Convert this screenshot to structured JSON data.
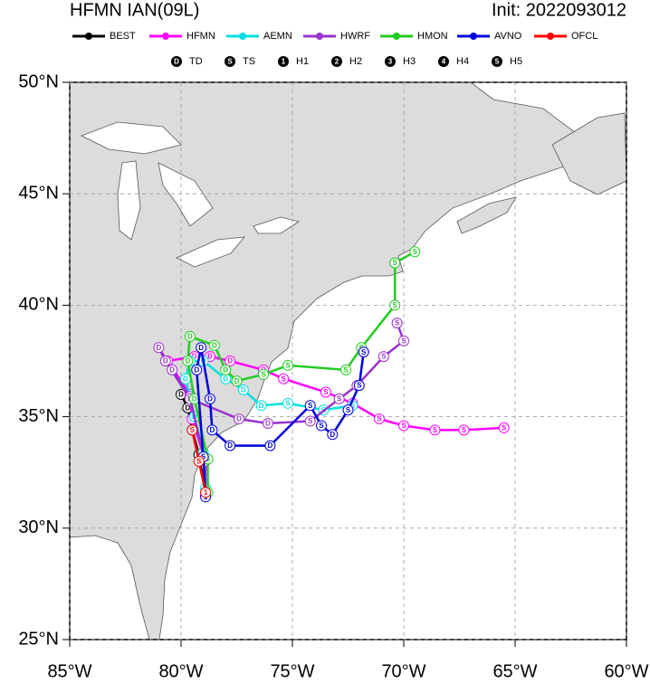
{
  "chart_data": {
    "type": "line",
    "title": "HFMN IAN(09L)",
    "subtitle": "Init: 2022093012",
    "xlim": [
      -85,
      -60
    ],
    "ylim": [
      25,
      50
    ],
    "xticks": [
      {
        "value": -85,
        "label": "85°W"
      },
      {
        "value": -80,
        "label": "80°W"
      },
      {
        "value": -75,
        "label": "75°W"
      },
      {
        "value": -70,
        "label": "70°W"
      },
      {
        "value": -65,
        "label": "65°W"
      },
      {
        "value": -60,
        "label": "60°W"
      }
    ],
    "yticks": [
      {
        "value": 25,
        "label": "25°N"
      },
      {
        "value": 30,
        "label": "30°N"
      },
      {
        "value": 35,
        "label": "35°N"
      },
      {
        "value": 40,
        "label": "40°N"
      },
      {
        "value": 45,
        "label": "45°N"
      },
      {
        "value": 50,
        "label": "50°N"
      }
    ],
    "grid": true,
    "intensity_legend": [
      {
        "symbol": "D",
        "label": "TD"
      },
      {
        "symbol": "S",
        "label": "TS"
      },
      {
        "symbol": "1",
        "label": "H1"
      },
      {
        "symbol": "2",
        "label": "H2"
      },
      {
        "symbol": "3",
        "label": "H3"
      },
      {
        "symbol": "4",
        "label": "H4"
      },
      {
        "symbol": "5",
        "label": "H5"
      }
    ],
    "series": [
      {
        "name": "BEST",
        "color": "#000000",
        "x": [
          -78.9,
          -79.2,
          -79.5,
          -79.7,
          -80.0
        ],
        "values": [
          31.5,
          33.3,
          34.4,
          35.4,
          36.0
        ],
        "marker_labels": [
          "1",
          "S",
          "S",
          "D",
          "D"
        ]
      },
      {
        "name": "HFMN",
        "color": "#ff00ff",
        "x": [
          -78.9,
          -78.9,
          -79.5,
          -79.6,
          -80.6,
          -79.4,
          -78.7,
          -77.8,
          -76.3,
          -75.4,
          -73.5,
          -72.3,
          -71.1,
          -70.0,
          -68.6,
          -67.3,
          -65.5
        ],
        "values": [
          31.5,
          33.0,
          34.9,
          36.0,
          37.5,
          37.7,
          37.7,
          37.5,
          37.1,
          36.7,
          36.1,
          35.6,
          34.9,
          34.6,
          34.4,
          34.4,
          34.5
        ],
        "marker_labels": [
          "1",
          "S",
          "D",
          "D",
          "D",
          "D",
          "D",
          "D",
          "D",
          "S",
          "S",
          "S",
          "S",
          "S",
          "S",
          "S",
          "S"
        ]
      },
      {
        "name": "AEMN",
        "color": "#00e0e0",
        "x": [
          -78.9,
          -79.0,
          -79.4,
          -79.8,
          -79.6,
          -79.0,
          -78.0,
          -77.2,
          -76.4,
          -75.2,
          -73.6,
          -72.3
        ],
        "values": [
          31.8,
          33.4,
          35.0,
          36.7,
          37.5,
          37.5,
          36.7,
          36.2,
          35.5,
          35.6,
          35.3,
          35.5
        ],
        "marker_labels": [
          "1",
          "S",
          "D",
          "D",
          "D",
          "D",
          "D",
          "D",
          "D",
          "S",
          "S",
          "S"
        ]
      },
      {
        "name": "HWRF",
        "color": "#9933cc",
        "x": [
          -78.9,
          -79.0,
          -79.6,
          -80.4,
          -81.0,
          -80.7,
          -79.6,
          -77.4,
          -76.1,
          -74.2,
          -72.9,
          -72.1,
          -70.9,
          -70.0,
          -70.3
        ],
        "values": [
          31.6,
          33.2,
          35.9,
          37.1,
          38.1,
          37.5,
          35.8,
          34.9,
          34.7,
          34.8,
          35.8,
          36.4,
          37.7,
          38.4,
          39.2
        ],
        "marker_labels": [
          "1",
          "S",
          "D",
          "D",
          "D",
          "D",
          "D",
          "D",
          "D",
          "S",
          "S",
          "S",
          "S",
          "S",
          "S"
        ]
      },
      {
        "name": "HMON",
        "color": "#22cc22",
        "x": [
          -78.8,
          -78.8,
          -79.4,
          -79.7,
          -79.6,
          -78.5,
          -78.0,
          -77.5,
          -76.3,
          -75.2,
          -72.6,
          -71.9,
          -70.4,
          -70.4,
          -69.5
        ],
        "values": [
          31.6,
          33.1,
          35.8,
          37.5,
          38.6,
          38.2,
          37.1,
          36.6,
          36.9,
          37.3,
          37.1,
          38.1,
          40.0,
          41.9,
          42.4
        ],
        "marker_labels": [
          "1",
          "S",
          "D",
          "D",
          "D",
          "D",
          "D",
          "D",
          "S",
          "S",
          "S",
          "S",
          "S",
          "S",
          "S"
        ]
      },
      {
        "name": "AVNO",
        "color": "#0000dd",
        "x": [
          -78.9,
          -79.0,
          -79.3,
          -79.1,
          -78.7,
          -78.6,
          -77.8,
          -76.0,
          -74.2,
          -73.7,
          -73.2,
          -72.5,
          -72.0,
          -71.8
        ],
        "values": [
          31.4,
          33.2,
          37.1,
          38.1,
          35.8,
          34.4,
          33.7,
          33.7,
          35.5,
          34.6,
          34.2,
          35.3,
          36.4,
          37.9
        ],
        "marker_labels": [
          "1",
          "S",
          "D",
          "D",
          "D",
          "D",
          "D",
          "D",
          "S",
          "S",
          "D",
          "S",
          "S",
          "S"
        ]
      },
      {
        "name": "OFCL",
        "color": "#ff0000",
        "x": [
          -78.9,
          -79.2,
          -79.5
        ],
        "values": [
          31.6,
          33.0,
          34.4
        ],
        "marker_labels": [
          "1",
          "S",
          "S"
        ]
      }
    ]
  }
}
